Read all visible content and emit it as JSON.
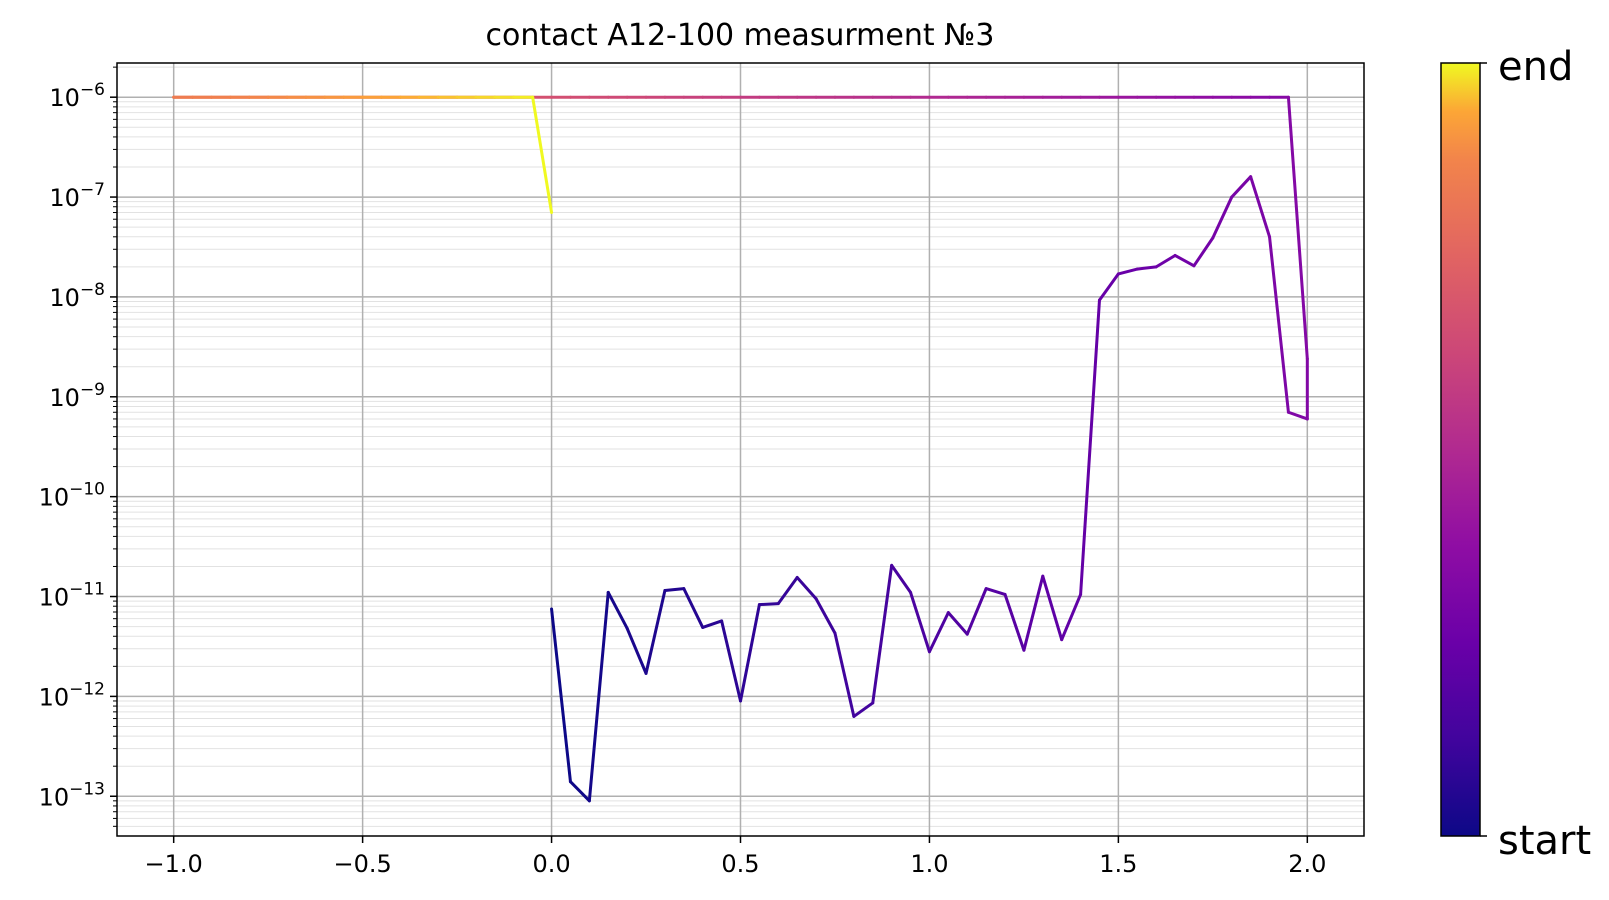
{
  "chart_data": {
    "type": "line",
    "title": "contact A12-100 measurment №3",
    "xlabel": "",
    "ylabel": "",
    "yscale": "log",
    "xlim": [
      -1.15,
      2.15
    ],
    "ylim": [
      4e-14,
      2.2e-06
    ],
    "xticks": [
      -1.0,
      -0.5,
      0.0,
      0.5,
      1.0,
      1.5,
      2.0
    ],
    "xtick_labels": [
      "−1.0",
      "−0.5",
      "0.0",
      "0.5",
      "1.0",
      "1.5",
      "2.0"
    ],
    "ytick_exponents": [
      -6,
      -7,
      -8,
      -9,
      -10,
      -11,
      -12,
      -13
    ],
    "ytick_base": "10",
    "grid": "major and minor",
    "colormap": "plasma",
    "colorbar_labels": {
      "end": "end",
      "start": "start"
    },
    "series": [
      {
        "x": [
          0.0,
          0.05,
          0.1,
          0.15,
          0.2,
          0.25,
          0.3,
          0.35,
          0.4,
          0.45,
          0.5,
          0.55,
          0.6,
          0.65,
          0.7,
          0.75,
          0.8,
          0.85,
          0.9,
          0.95,
          1.0,
          1.05,
          1.1,
          1.15,
          1.2,
          1.25,
          1.3,
          1.35,
          1.4,
          1.45,
          1.5,
          1.55,
          1.6,
          1.65,
          1.7,
          1.75,
          1.8,
          1.85,
          1.9,
          1.95,
          2.0,
          2.0,
          1.95,
          1.9,
          1.85,
          1.8,
          1.75,
          1.7,
          1.65,
          1.6,
          1.55,
          1.5,
          1.45,
          1.4,
          1.35,
          1.3,
          1.25,
          1.2,
          1.15,
          1.1,
          1.05,
          1.0,
          0.95,
          0.9,
          0.85,
          0.8,
          0.75,
          0.7,
          0.65,
          0.6,
          0.55,
          0.5,
          0.45,
          0.4,
          0.35,
          0.3,
          0.25,
          0.2,
          0.15,
          0.1,
          0.05,
          0.0,
          -0.05,
          -0.1,
          -0.15,
          -0.2,
          -0.25,
          -0.3,
          -0.35,
          -0.4,
          -0.45,
          -0.5,
          -0.55,
          -0.6,
          -0.65,
          -0.7,
          -0.75,
          -0.8,
          -0.85,
          -0.9,
          -0.95,
          -1.0,
          -1.0,
          -0.95,
          -0.9,
          -0.85,
          -0.8,
          -0.75,
          -0.7,
          -0.65,
          -0.6,
          -0.55,
          -0.5,
          -0.45,
          -0.4,
          -0.35,
          -0.3,
          -0.25,
          -0.2,
          -0.15,
          -0.1,
          -0.05,
          0.0
        ],
        "y": [
          7.5e-12,
          1.4e-13,
          9e-14,
          1.1e-11,
          4.8e-12,
          1.7e-12,
          1.15e-11,
          1.2e-11,
          4.9e-12,
          5.7e-12,
          9e-13,
          8.3e-12,
          8.5e-12,
          1.55e-11,
          9.5e-12,
          4.3e-12,
          6.3e-13,
          8.6e-13,
          2.05e-11,
          1.1e-11,
          2.8e-12,
          6.9e-12,
          4.2e-12,
          1.2e-11,
          1.05e-11,
          2.9e-12,
          1.6e-11,
          3.7e-12,
          1.05e-11,
          9.3e-09,
          1.7e-08,
          1.9e-08,
          2e-08,
          2.6e-08,
          2.05e-08,
          3.9e-08,
          1e-07,
          1.6e-07,
          4e-08,
          7e-10,
          6e-10,
          2.4e-09,
          1e-06,
          1e-06,
          1e-06,
          1e-06,
          1e-06,
          1e-06,
          1e-06,
          1e-06,
          1e-06,
          1e-06,
          1e-06,
          1e-06,
          1e-06,
          1e-06,
          1e-06,
          1e-06,
          1e-06,
          1e-06,
          1e-06,
          1e-06,
          1e-06,
          1e-06,
          1e-06,
          1e-06,
          1e-06,
          1e-06,
          1e-06,
          1e-06,
          1e-06,
          1e-06,
          1e-06,
          1e-06,
          1e-06,
          1e-06,
          1e-06,
          1e-06,
          1e-06,
          1e-06,
          1e-06,
          1e-06,
          1e-06,
          1e-06,
          1e-06,
          1e-06,
          1e-06,
          1e-06,
          1e-06,
          1e-06,
          1e-06,
          1e-06,
          1e-06,
          1e-06,
          1e-06,
          1e-06,
          1e-06,
          1e-06,
          1e-06,
          1e-06,
          1e-06,
          1e-06,
          1e-06,
          1e-06,
          1e-06,
          1e-06,
          1e-06,
          1e-06,
          1e-06,
          1e-06,
          1e-06,
          1e-06,
          1e-06,
          1e-06,
          1e-06,
          1e-06,
          1e-06,
          1e-06,
          1e-06,
          1e-06,
          1e-06,
          1e-06,
          7e-08
        ]
      }
    ]
  }
}
